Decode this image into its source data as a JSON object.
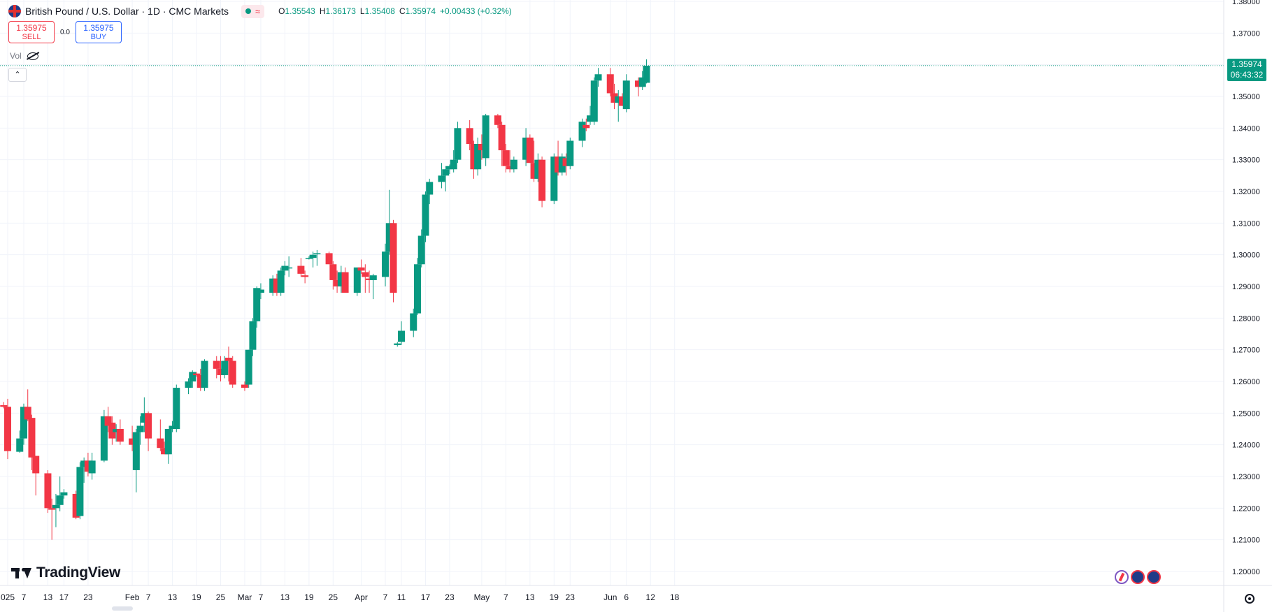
{
  "header": {
    "symbol_title": "British Pound / U.S. Dollar · 1D · CMC Markets",
    "status_icon": "wave-icon",
    "ohlc": {
      "open_label": "O",
      "open": "1.35543",
      "high_label": "H",
      "high": "1.36173",
      "low_label": "L",
      "low": "1.35408",
      "close_label": "C",
      "close": "1.35974",
      "change": "+0.00433 (+0.32%)"
    }
  },
  "trade": {
    "sell_price": "1.35975",
    "sell_label": "SELL",
    "spread": "0.0",
    "buy_price": "1.35975",
    "buy_label": "BUY"
  },
  "indicator": {
    "vol_label": "Vol"
  },
  "price_label": {
    "value": "1.35974",
    "countdown": "06:43:32"
  },
  "logo": {
    "text": "TradingView"
  },
  "colors": {
    "up": "#089981",
    "down": "#f23645",
    "grid": "#f0f3fa",
    "axis_text": "#131722"
  },
  "chart_data": {
    "type": "candlestick",
    "title": "British Pound / U.S. Dollar · 1D · CMC Markets",
    "ylim": [
      1.2,
      1.38
    ],
    "y_ticks": [
      "1.38000",
      "1.37000",
      "1.36000",
      "1.35000",
      "1.34000",
      "1.33000",
      "1.32000",
      "1.31000",
      "1.30000",
      "1.29000",
      "1.28000",
      "1.27000",
      "1.26000",
      "1.25000",
      "1.24000",
      "1.23000",
      "1.22000",
      "1.21000",
      "1.20000"
    ],
    "x_ticks": [
      {
        "label": "025",
        "date": "2025-01-03"
      },
      {
        "label": "7",
        "date": "2025-01-07"
      },
      {
        "label": "13",
        "date": "2025-01-13"
      },
      {
        "label": "17",
        "date": "2025-01-17"
      },
      {
        "label": "23",
        "date": "2025-01-23"
      },
      {
        "label": "Feb",
        "date": "2025-02-03"
      },
      {
        "label": "7",
        "date": "2025-02-07"
      },
      {
        "label": "13",
        "date": "2025-02-13"
      },
      {
        "label": "19",
        "date": "2025-02-19"
      },
      {
        "label": "25",
        "date": "2025-02-25"
      },
      {
        "label": "Mar",
        "date": "2025-03-03"
      },
      {
        "label": "7",
        "date": "2025-03-07"
      },
      {
        "label": "13",
        "date": "2025-03-13"
      },
      {
        "label": "19",
        "date": "2025-03-19"
      },
      {
        "label": "25",
        "date": "2025-03-25"
      },
      {
        "label": "Apr",
        "date": "2025-04-01"
      },
      {
        "label": "7",
        "date": "2025-04-07"
      },
      {
        "label": "11",
        "date": "2025-04-11"
      },
      {
        "label": "17",
        "date": "2025-04-17"
      },
      {
        "label": "23",
        "date": "2025-04-23"
      },
      {
        "label": "May",
        "date": "2025-05-01"
      },
      {
        "label": "7",
        "date": "2025-05-07"
      },
      {
        "label": "13",
        "date": "2025-05-13"
      },
      {
        "label": "19",
        "date": "2025-05-19"
      },
      {
        "label": "23",
        "date": "2025-05-23"
      },
      {
        "label": "Jun",
        "date": "2025-06-02"
      },
      {
        "label": "6",
        "date": "2025-06-06"
      },
      {
        "label": "12",
        "date": "2025-06-12"
      },
      {
        "label": "18",
        "date": "2025-06-18"
      }
    ],
    "candles": [
      {
        "date": "2025-01-02",
        "o": 1.2525,
        "h": 1.2535,
        "l": 1.2515,
        "c": 1.252
      },
      {
        "date": "2025-01-03",
        "o": 1.252,
        "h": 1.2545,
        "l": 1.2355,
        "c": 1.238
      },
      {
        "date": "2025-01-06",
        "o": 1.2378,
        "h": 1.2445,
        "l": 1.2375,
        "c": 1.242
      },
      {
        "date": "2025-01-07",
        "o": 1.242,
        "h": 1.253,
        "l": 1.24,
        "c": 1.252
      },
      {
        "date": "2025-01-08",
        "o": 1.252,
        "h": 1.2575,
        "l": 1.2475,
        "c": 1.248
      },
      {
        "date": "2025-01-09",
        "o": 1.2485,
        "h": 1.2495,
        "l": 1.232,
        "c": 1.236
      },
      {
        "date": "2025-01-10",
        "o": 1.2365,
        "h": 1.2365,
        "l": 1.224,
        "c": 1.231
      },
      {
        "date": "2025-01-13",
        "o": 1.231,
        "h": 1.232,
        "l": 1.2185,
        "c": 1.22
      },
      {
        "date": "2025-01-14",
        "o": 1.22,
        "h": 1.223,
        "l": 1.21,
        "c": 1.2195
      },
      {
        "date": "2025-01-15",
        "o": 1.22,
        "h": 1.2245,
        "l": 1.214,
        "c": 1.221
      },
      {
        "date": "2025-01-16",
        "o": 1.221,
        "h": 1.23,
        "l": 1.219,
        "c": 1.224
      },
      {
        "date": "2025-01-17",
        "o": 1.224,
        "h": 1.226,
        "l": 1.223,
        "c": 1.225
      },
      {
        "date": "2025-01-20",
        "o": 1.2245,
        "h": 1.2255,
        "l": 1.2165,
        "c": 1.217
      },
      {
        "date": "2025-01-21",
        "o": 1.2175,
        "h": 1.2345,
        "l": 1.2165,
        "c": 1.233
      },
      {
        "date": "2025-01-22",
        "o": 1.233,
        "h": 1.236,
        "l": 1.228,
        "c": 1.235
      },
      {
        "date": "2025-01-23",
        "o": 1.235,
        "h": 1.2375,
        "l": 1.23,
        "c": 1.2315
      },
      {
        "date": "2025-01-24",
        "o": 1.231,
        "h": 1.2375,
        "l": 1.229,
        "c": 1.235
      },
      {
        "date": "2025-01-27",
        "o": 1.235,
        "h": 1.251,
        "l": 1.2345,
        "c": 1.249
      },
      {
        "date": "2025-01-28",
        "o": 1.249,
        "h": 1.252,
        "l": 1.244,
        "c": 1.246
      },
      {
        "date": "2025-01-29",
        "o": 1.247,
        "h": 1.249,
        "l": 1.24,
        "c": 1.242
      },
      {
        "date": "2025-01-30",
        "o": 1.244,
        "h": 1.2465,
        "l": 1.241,
        "c": 1.245
      },
      {
        "date": "2025-01-31",
        "o": 1.245,
        "h": 1.248,
        "l": 1.24,
        "c": 1.241
      },
      {
        "date": "2025-02-03",
        "o": 1.242,
        "h": 1.246,
        "l": 1.238,
        "c": 1.24
      },
      {
        "date": "2025-02-04",
        "o": 1.232,
        "h": 1.245,
        "l": 1.225,
        "c": 1.244
      },
      {
        "date": "2025-02-05",
        "o": 1.244,
        "h": 1.249,
        "l": 1.24,
        "c": 1.246
      },
      {
        "date": "2025-02-06",
        "o": 1.247,
        "h": 1.255,
        "l": 1.244,
        "c": 1.25
      },
      {
        "date": "2025-02-07",
        "o": 1.25,
        "h": 1.2505,
        "l": 1.238,
        "c": 1.242
      },
      {
        "date": "2025-02-10",
        "o": 1.242,
        "h": 1.248,
        "l": 1.238,
        "c": 1.239
      },
      {
        "date": "2025-02-11",
        "o": 1.239,
        "h": 1.241,
        "l": 1.237,
        "c": 1.237
      },
      {
        "date": "2025-02-12",
        "o": 1.237,
        "h": 1.245,
        "l": 1.234,
        "c": 1.245
      },
      {
        "date": "2025-02-13",
        "o": 1.245,
        "h": 1.2475,
        "l": 1.244,
        "c": 1.246
      },
      {
        "date": "2025-02-14",
        "o": 1.245,
        "h": 1.259,
        "l": 1.244,
        "c": 1.258
      },
      {
        "date": "2025-02-17",
        "o": 1.258,
        "h": 1.261,
        "l": 1.256,
        "c": 1.26
      },
      {
        "date": "2025-02-18",
        "o": 1.26,
        "h": 1.2635,
        "l": 1.258,
        "c": 1.263
      },
      {
        "date": "2025-02-19",
        "o": 1.2625,
        "h": 1.263,
        "l": 1.2615,
        "c": 1.262
      },
      {
        "date": "2025-02-20",
        "o": 1.262,
        "h": 1.264,
        "l": 1.257,
        "c": 1.258
      },
      {
        "date": "2025-02-21",
        "o": 1.258,
        "h": 1.267,
        "l": 1.257,
        "c": 1.2665
      },
      {
        "date": "2025-02-24",
        "o": 1.2665,
        "h": 1.268,
        "l": 1.261,
        "c": 1.264
      },
      {
        "date": "2025-02-25",
        "o": 1.264,
        "h": 1.268,
        "l": 1.26,
        "c": 1.262
      },
      {
        "date": "2025-02-26",
        "o": 1.262,
        "h": 1.268,
        "l": 1.261,
        "c": 1.2665
      },
      {
        "date": "2025-02-27",
        "o": 1.2675,
        "h": 1.271,
        "l": 1.26,
        "c": 1.2665
      },
      {
        "date": "2025-02-28",
        "o": 1.2665,
        "h": 1.268,
        "l": 1.258,
        "c": 1.259
      },
      {
        "date": "2025-03-03",
        "o": 1.259,
        "h": 1.26,
        "l": 1.257,
        "c": 1.258
      },
      {
        "date": "2025-03-04",
        "o": 1.259,
        "h": 1.27,
        "l": 1.258,
        "c": 1.27
      },
      {
        "date": "2025-03-05",
        "o": 1.27,
        "h": 1.28,
        "l": 1.268,
        "c": 1.279
      },
      {
        "date": "2025-03-06",
        "o": 1.279,
        "h": 1.29,
        "l": 1.277,
        "c": 1.2895
      },
      {
        "date": "2025-03-07",
        "o": 1.288,
        "h": 1.291,
        "l": 1.286,
        "c": 1.289
      },
      {
        "date": "2025-03-10",
        "o": 1.288,
        "h": 1.2935,
        "l": 1.287,
        "c": 1.2925
      },
      {
        "date": "2025-03-11",
        "o": 1.2925,
        "h": 1.294,
        "l": 1.287,
        "c": 1.288
      },
      {
        "date": "2025-03-12",
        "o": 1.288,
        "h": 1.296,
        "l": 1.287,
        "c": 1.295
      },
      {
        "date": "2025-03-13",
        "o": 1.295,
        "h": 1.298,
        "l": 1.2935,
        "c": 1.2965
      },
      {
        "date": "2025-03-14",
        "o": 1.296,
        "h": 1.2995,
        "l": 1.293,
        "c": 1.296
      },
      {
        "date": "2025-03-17",
        "o": 1.2965,
        "h": 1.299,
        "l": 1.293,
        "c": 1.294
      },
      {
        "date": "2025-03-18",
        "o": 1.2935,
        "h": 1.295,
        "l": 1.291,
        "c": 1.293
      },
      {
        "date": "2025-03-19",
        "o": 1.299,
        "h": 1.2995,
        "l": 1.2985,
        "c": 1.299
      },
      {
        "date": "2025-03-20",
        "o": 1.299,
        "h": 1.301,
        "l": 1.296,
        "c": 1.3
      },
      {
        "date": "2025-03-21",
        "o": 1.3005,
        "h": 1.3015,
        "l": 1.2965,
        "c": 1.3005
      },
      {
        "date": "2025-03-24",
        "o": 1.3005,
        "h": 1.301,
        "l": 1.297,
        "c": 1.297
      },
      {
        "date": "2025-03-25",
        "o": 1.297,
        "h": 1.298,
        "l": 1.289,
        "c": 1.292
      },
      {
        "date": "2025-03-26",
        "o": 1.292,
        "h": 1.295,
        "l": 1.288,
        "c": 1.29
      },
      {
        "date": "2025-03-27",
        "o": 1.29,
        "h": 1.2965,
        "l": 1.288,
        "c": 1.2945
      },
      {
        "date": "2025-03-28",
        "o": 1.2945,
        "h": 1.296,
        "l": 1.288,
        "c": 1.288
      },
      {
        "date": "2025-03-31",
        "o": 1.288,
        "h": 1.295,
        "l": 1.287,
        "c": 1.296
      },
      {
        "date": "2025-04-01",
        "o": 1.296,
        "h": 1.2985,
        "l": 1.294,
        "c": 1.295
      },
      {
        "date": "2025-04-02",
        "o": 1.2945,
        "h": 1.297,
        "l": 1.288,
        "c": 1.293
      },
      {
        "date": "2025-04-03",
        "o": 1.2925,
        "h": 1.295,
        "l": 1.288,
        "c": 1.292
      },
      {
        "date": "2025-04-04",
        "o": 1.292,
        "h": 1.294,
        "l": 1.286,
        "c": 1.2935
      },
      {
        "date": "2025-04-07",
        "o": 1.293,
        "h": 1.3035,
        "l": 1.29,
        "c": 1.301
      },
      {
        "date": "2025-04-08",
        "o": 1.301,
        "h": 1.3205,
        "l": 1.3,
        "c": 1.31
      },
      {
        "date": "2025-04-09",
        "o": 1.31,
        "h": 1.311,
        "l": 1.285,
        "c": 1.288
      },
      {
        "date": "2025-04-10",
        "o": 1.2715,
        "h": 1.2725,
        "l": 1.271,
        "c": 1.272
      },
      {
        "date": "2025-04-11",
        "o": 1.2725,
        "h": 1.279,
        "l": 1.2715,
        "c": 1.276
      },
      {
        "date": "2025-04-14",
        "o": 1.276,
        "h": 1.283,
        "l": 1.274,
        "c": 1.2815
      },
      {
        "date": "2025-04-15",
        "o": 1.2815,
        "h": 1.299,
        "l": 1.281,
        "c": 1.297
      },
      {
        "date": "2025-04-16",
        "o": 1.297,
        "h": 1.308,
        "l": 1.296,
        "c": 1.306
      },
      {
        "date": "2025-04-17",
        "o": 1.306,
        "h": 1.32,
        "l": 1.304,
        "c": 1.319
      },
      {
        "date": "2025-04-18",
        "o": 1.319,
        "h": 1.324,
        "l": 1.316,
        "c": 1.323
      },
      {
        "date": "2025-04-21",
        "o": 1.323,
        "h": 1.329,
        "l": 1.321,
        "c": 1.325
      },
      {
        "date": "2025-04-22",
        "o": 1.325,
        "h": 1.328,
        "l": 1.32,
        "c": 1.327
      },
      {
        "date": "2025-04-23",
        "o": 1.327,
        "h": 1.3285,
        "l": 1.3255,
        "c": 1.328
      },
      {
        "date": "2025-04-24",
        "o": 1.327,
        "h": 1.333,
        "l": 1.326,
        "c": 1.33
      },
      {
        "date": "2025-04-25",
        "o": 1.33,
        "h": 1.342,
        "l": 1.329,
        "c": 1.34
      },
      {
        "date": "2025-04-28",
        "o": 1.34,
        "h": 1.3425,
        "l": 1.333,
        "c": 1.335
      },
      {
        "date": "2025-04-29",
        "o": 1.335,
        "h": 1.336,
        "l": 1.324,
        "c": 1.327
      },
      {
        "date": "2025-04-30",
        "o": 1.327,
        "h": 1.337,
        "l": 1.325,
        "c": 1.335
      },
      {
        "date": "2025-05-01",
        "o": 1.335,
        "h": 1.338,
        "l": 1.33,
        "c": 1.333
      },
      {
        "date": "2025-05-02",
        "o": 1.3305,
        "h": 1.3445,
        "l": 1.328,
        "c": 1.344
      },
      {
        "date": "2025-05-05",
        "o": 1.344,
        "h": 1.3445,
        "l": 1.34,
        "c": 1.341
      },
      {
        "date": "2025-05-06",
        "o": 1.341,
        "h": 1.342,
        "l": 1.328,
        "c": 1.333
      },
      {
        "date": "2025-05-07",
        "o": 1.333,
        "h": 1.335,
        "l": 1.326,
        "c": 1.328
      },
      {
        "date": "2025-05-08",
        "o": 1.328,
        "h": 1.333,
        "l": 1.326,
        "c": 1.327
      },
      {
        "date": "2025-05-09",
        "o": 1.327,
        "h": 1.331,
        "l": 1.326,
        "c": 1.33
      },
      {
        "date": "2025-05-12",
        "o": 1.33,
        "h": 1.34,
        "l": 1.328,
        "c": 1.337
      },
      {
        "date": "2025-05-13",
        "o": 1.337,
        "h": 1.338,
        "l": 1.329,
        "c": 1.329
      },
      {
        "date": "2025-05-14",
        "o": 1.329,
        "h": 1.336,
        "l": 1.323,
        "c": 1.324
      },
      {
        "date": "2025-05-15",
        "o": 1.324,
        "h": 1.332,
        "l": 1.323,
        "c": 1.33
      },
      {
        "date": "2025-05-16",
        "o": 1.33,
        "h": 1.331,
        "l": 1.315,
        "c": 1.317
      },
      {
        "date": "2025-05-19",
        "o": 1.317,
        "h": 1.332,
        "l": 1.316,
        "c": 1.331
      },
      {
        "date": "2025-05-20",
        "o": 1.331,
        "h": 1.336,
        "l": 1.325,
        "c": 1.326
      },
      {
        "date": "2025-05-21",
        "o": 1.326,
        "h": 1.332,
        "l": 1.325,
        "c": 1.331
      },
      {
        "date": "2025-05-22",
        "o": 1.3305,
        "h": 1.332,
        "l": 1.325,
        "c": 1.328
      },
      {
        "date": "2025-05-23",
        "o": 1.328,
        "h": 1.337,
        "l": 1.327,
        "c": 1.336
      },
      {
        "date": "2025-05-26",
        "o": 1.336,
        "h": 1.343,
        "l": 1.334,
        "c": 1.342
      },
      {
        "date": "2025-05-27",
        "o": 1.341,
        "h": 1.343,
        "l": 1.339,
        "c": 1.34
      },
      {
        "date": "2025-05-28",
        "o": 1.342,
        "h": 1.347,
        "l": 1.341,
        "c": 1.344
      },
      {
        "date": "2025-05-29",
        "o": 1.342,
        "h": 1.356,
        "l": 1.341,
        "c": 1.355
      },
      {
        "date": "2025-05-30",
        "o": 1.355,
        "h": 1.359,
        "l": 1.353,
        "c": 1.357
      },
      {
        "date": "2025-06-02",
        "o": 1.357,
        "h": 1.359,
        "l": 1.35,
        "c": 1.351
      },
      {
        "date": "2025-06-03",
        "o": 1.351,
        "h": 1.354,
        "l": 1.346,
        "c": 1.348
      },
      {
        "date": "2025-06-04",
        "o": 1.348,
        "h": 1.352,
        "l": 1.342,
        "c": 1.35
      },
      {
        "date": "2025-06-05",
        "o": 1.35,
        "h": 1.351,
        "l": 1.347,
        "c": 1.347
      },
      {
        "date": "2025-06-06",
        "o": 1.346,
        "h": 1.357,
        "l": 1.345,
        "c": 1.355
      },
      {
        "date": "2025-06-09",
        "o": 1.355,
        "h": 1.356,
        "l": 1.35,
        "c": 1.353
      },
      {
        "date": "2025-06-10",
        "o": 1.353,
        "h": 1.358,
        "l": 1.352,
        "c": 1.356
      },
      {
        "date": "2025-06-11",
        "o": 1.3543,
        "h": 1.3617,
        "l": 1.3541,
        "c": 1.3597
      }
    ],
    "last_price": 1.35974,
    "grid": true
  }
}
